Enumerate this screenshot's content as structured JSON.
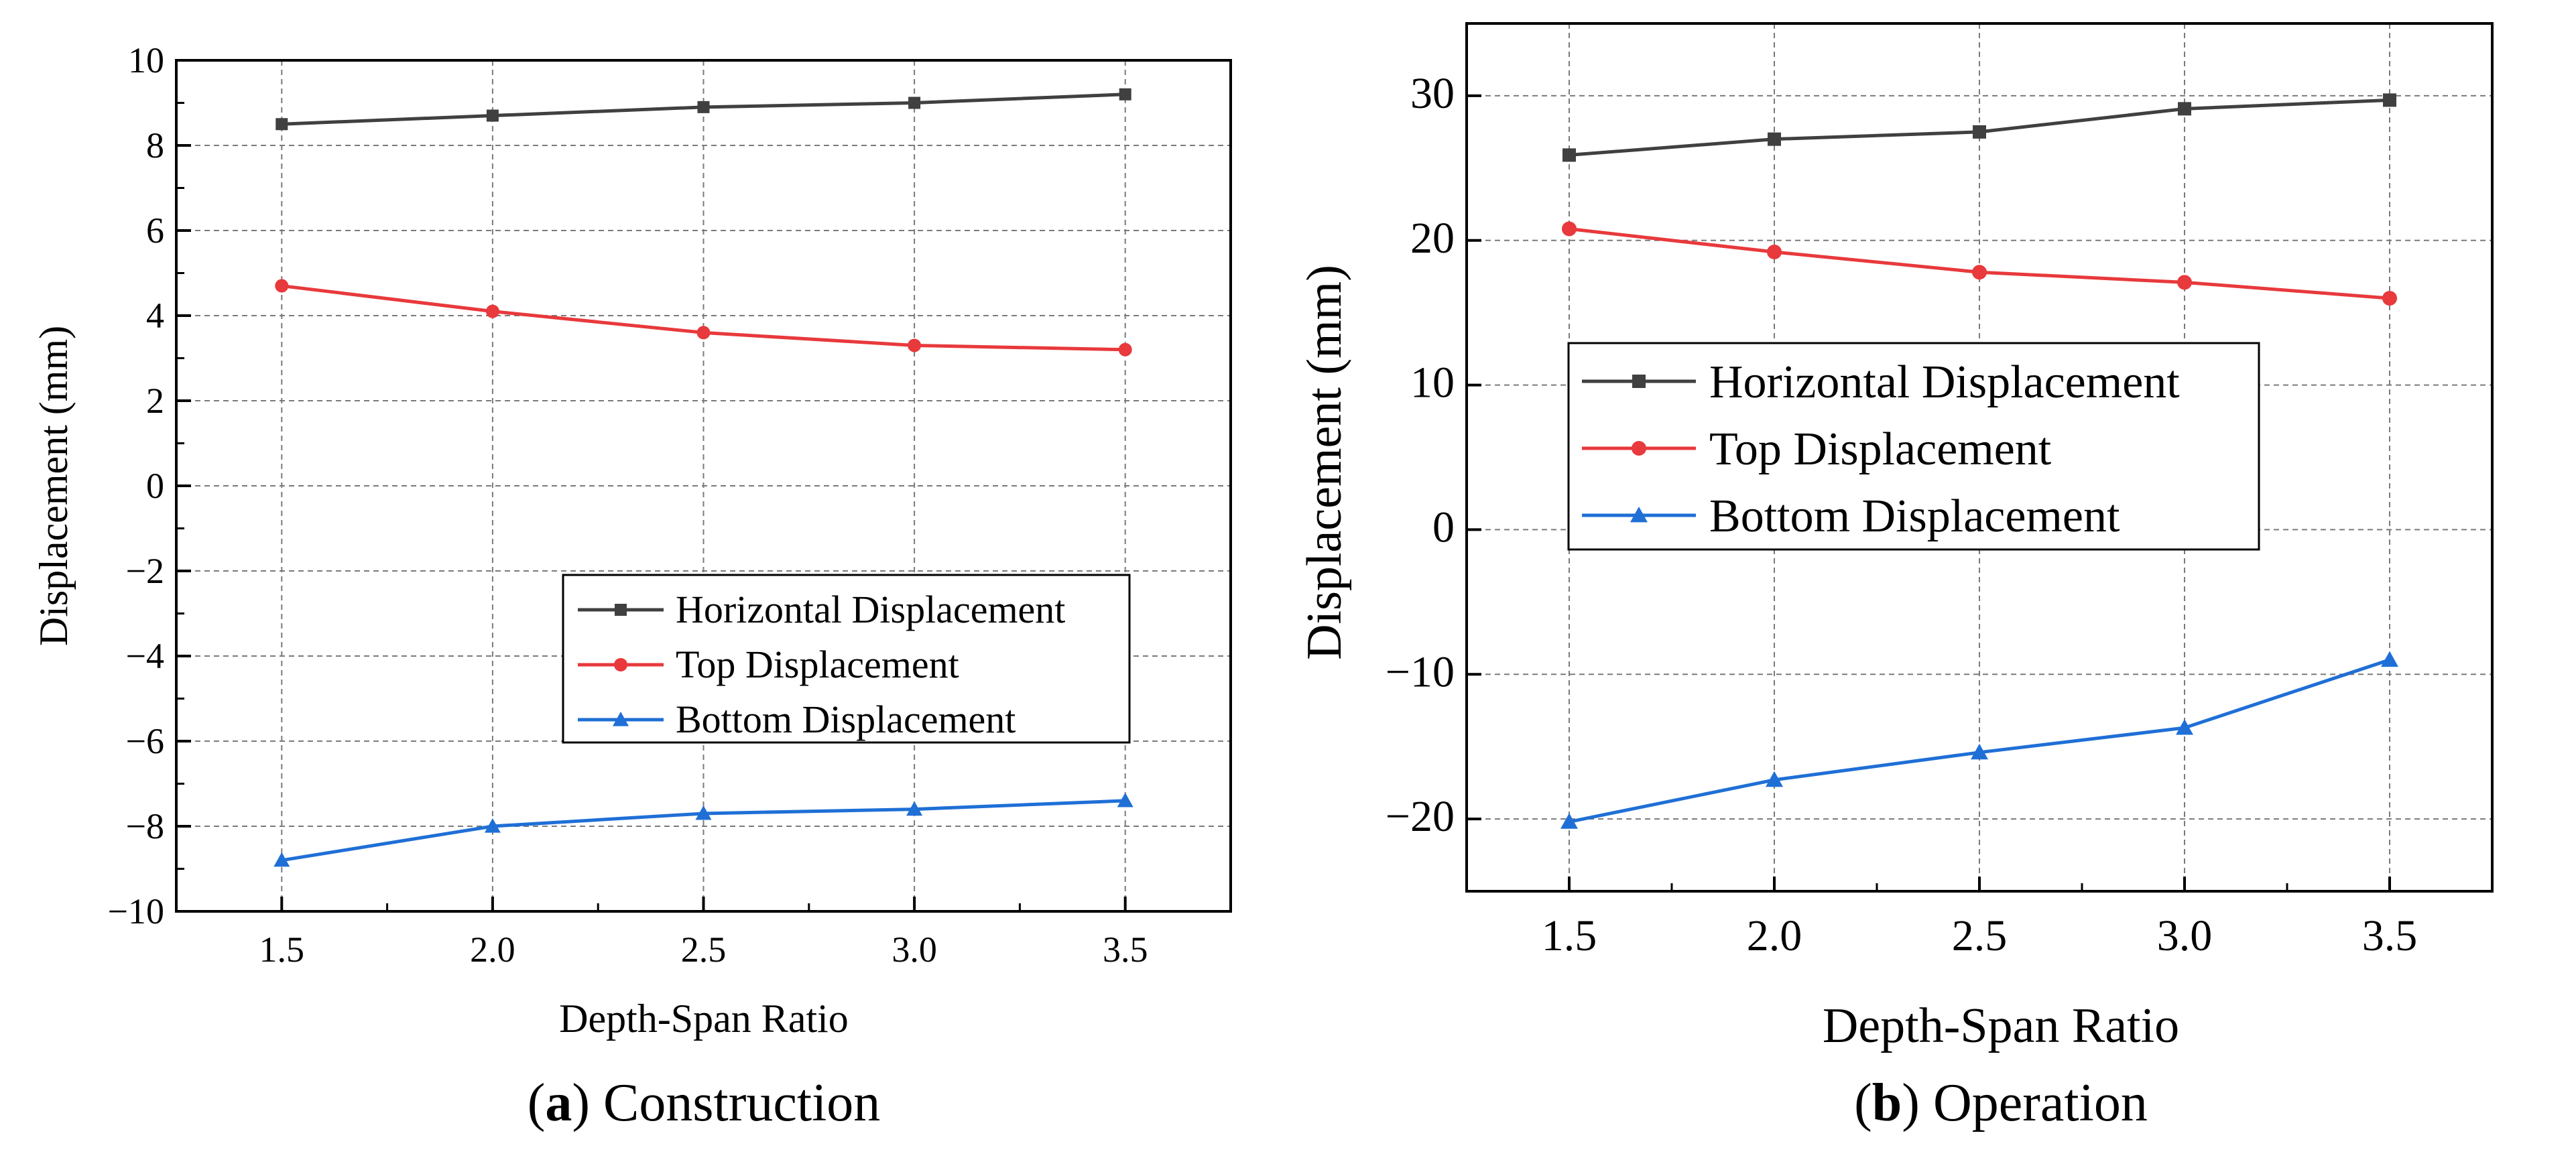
{
  "chart_data": [
    {
      "type": "line",
      "panel": "a",
      "caption_letter": "a",
      "caption_text": "Construction",
      "xlabel": "Depth-Span Ratio",
      "ylabel": "Displacement (mm)",
      "xlim": [
        1.25,
        3.75
      ],
      "ylim": [
        -10,
        10
      ],
      "x": [
        1.5,
        2.0,
        2.5,
        3.0,
        3.5
      ],
      "xticks": [
        "1.5",
        "2.0",
        "2.5",
        "3.0",
        "3.5"
      ],
      "yticks": [
        "10",
        "8",
        "6",
        "4",
        "2",
        "0",
        "−2",
        "−4",
        "−6",
        "−8",
        "−10"
      ],
      "ytick_values": [
        10,
        8,
        6,
        4,
        2,
        0,
        -2,
        -4,
        -6,
        -8,
        -10
      ],
      "legend_position": "lower-right",
      "series": [
        {
          "name": "Horizontal Displacement",
          "color": "#404040",
          "marker": "square",
          "values": [
            8.5,
            8.7,
            8.9,
            9.0,
            9.2
          ]
        },
        {
          "name": "Top Displacement",
          "color": "#e8393c",
          "marker": "circle",
          "values": [
            4.7,
            4.1,
            3.6,
            3.3,
            3.2
          ]
        },
        {
          "name": "Bottom Displacement",
          "color": "#1f6fd6",
          "marker": "triangle",
          "values": [
            -8.8,
            -8.0,
            -7.7,
            -7.6,
            -7.4
          ]
        }
      ]
    },
    {
      "type": "line",
      "panel": "b",
      "caption_letter": "b",
      "caption_text": "Operation",
      "xlabel": "Depth-Span Ratio",
      "ylabel": "Displacement (mm)",
      "xlim": [
        1.25,
        3.75
      ],
      "ylim": [
        -25,
        35
      ],
      "x": [
        1.5,
        2.0,
        2.5,
        3.0,
        3.5
      ],
      "xticks": [
        "1.5",
        "2.0",
        "2.5",
        "3.0",
        "3.5"
      ],
      "yticks": [
        "30",
        "20",
        "10",
        "0",
        "−10",
        "−20"
      ],
      "ytick_values": [
        30,
        20,
        10,
        0,
        -10,
        -20
      ],
      "legend_position": "center-left",
      "series": [
        {
          "name": "Horizontal Displacement",
          "color": "#404040",
          "marker": "square",
          "values": [
            25.9,
            27.0,
            27.5,
            29.1,
            29.7
          ]
        },
        {
          "name": "Top Displacement",
          "color": "#e8393c",
          "marker": "circle",
          "values": [
            20.8,
            19.2,
            17.8,
            17.1,
            16.0
          ]
        },
        {
          "name": "Bottom Displacement",
          "color": "#1f6fd6",
          "marker": "triangle",
          "values": [
            -20.2,
            -17.3,
            -15.4,
            -13.7,
            -9.0
          ]
        }
      ]
    }
  ]
}
